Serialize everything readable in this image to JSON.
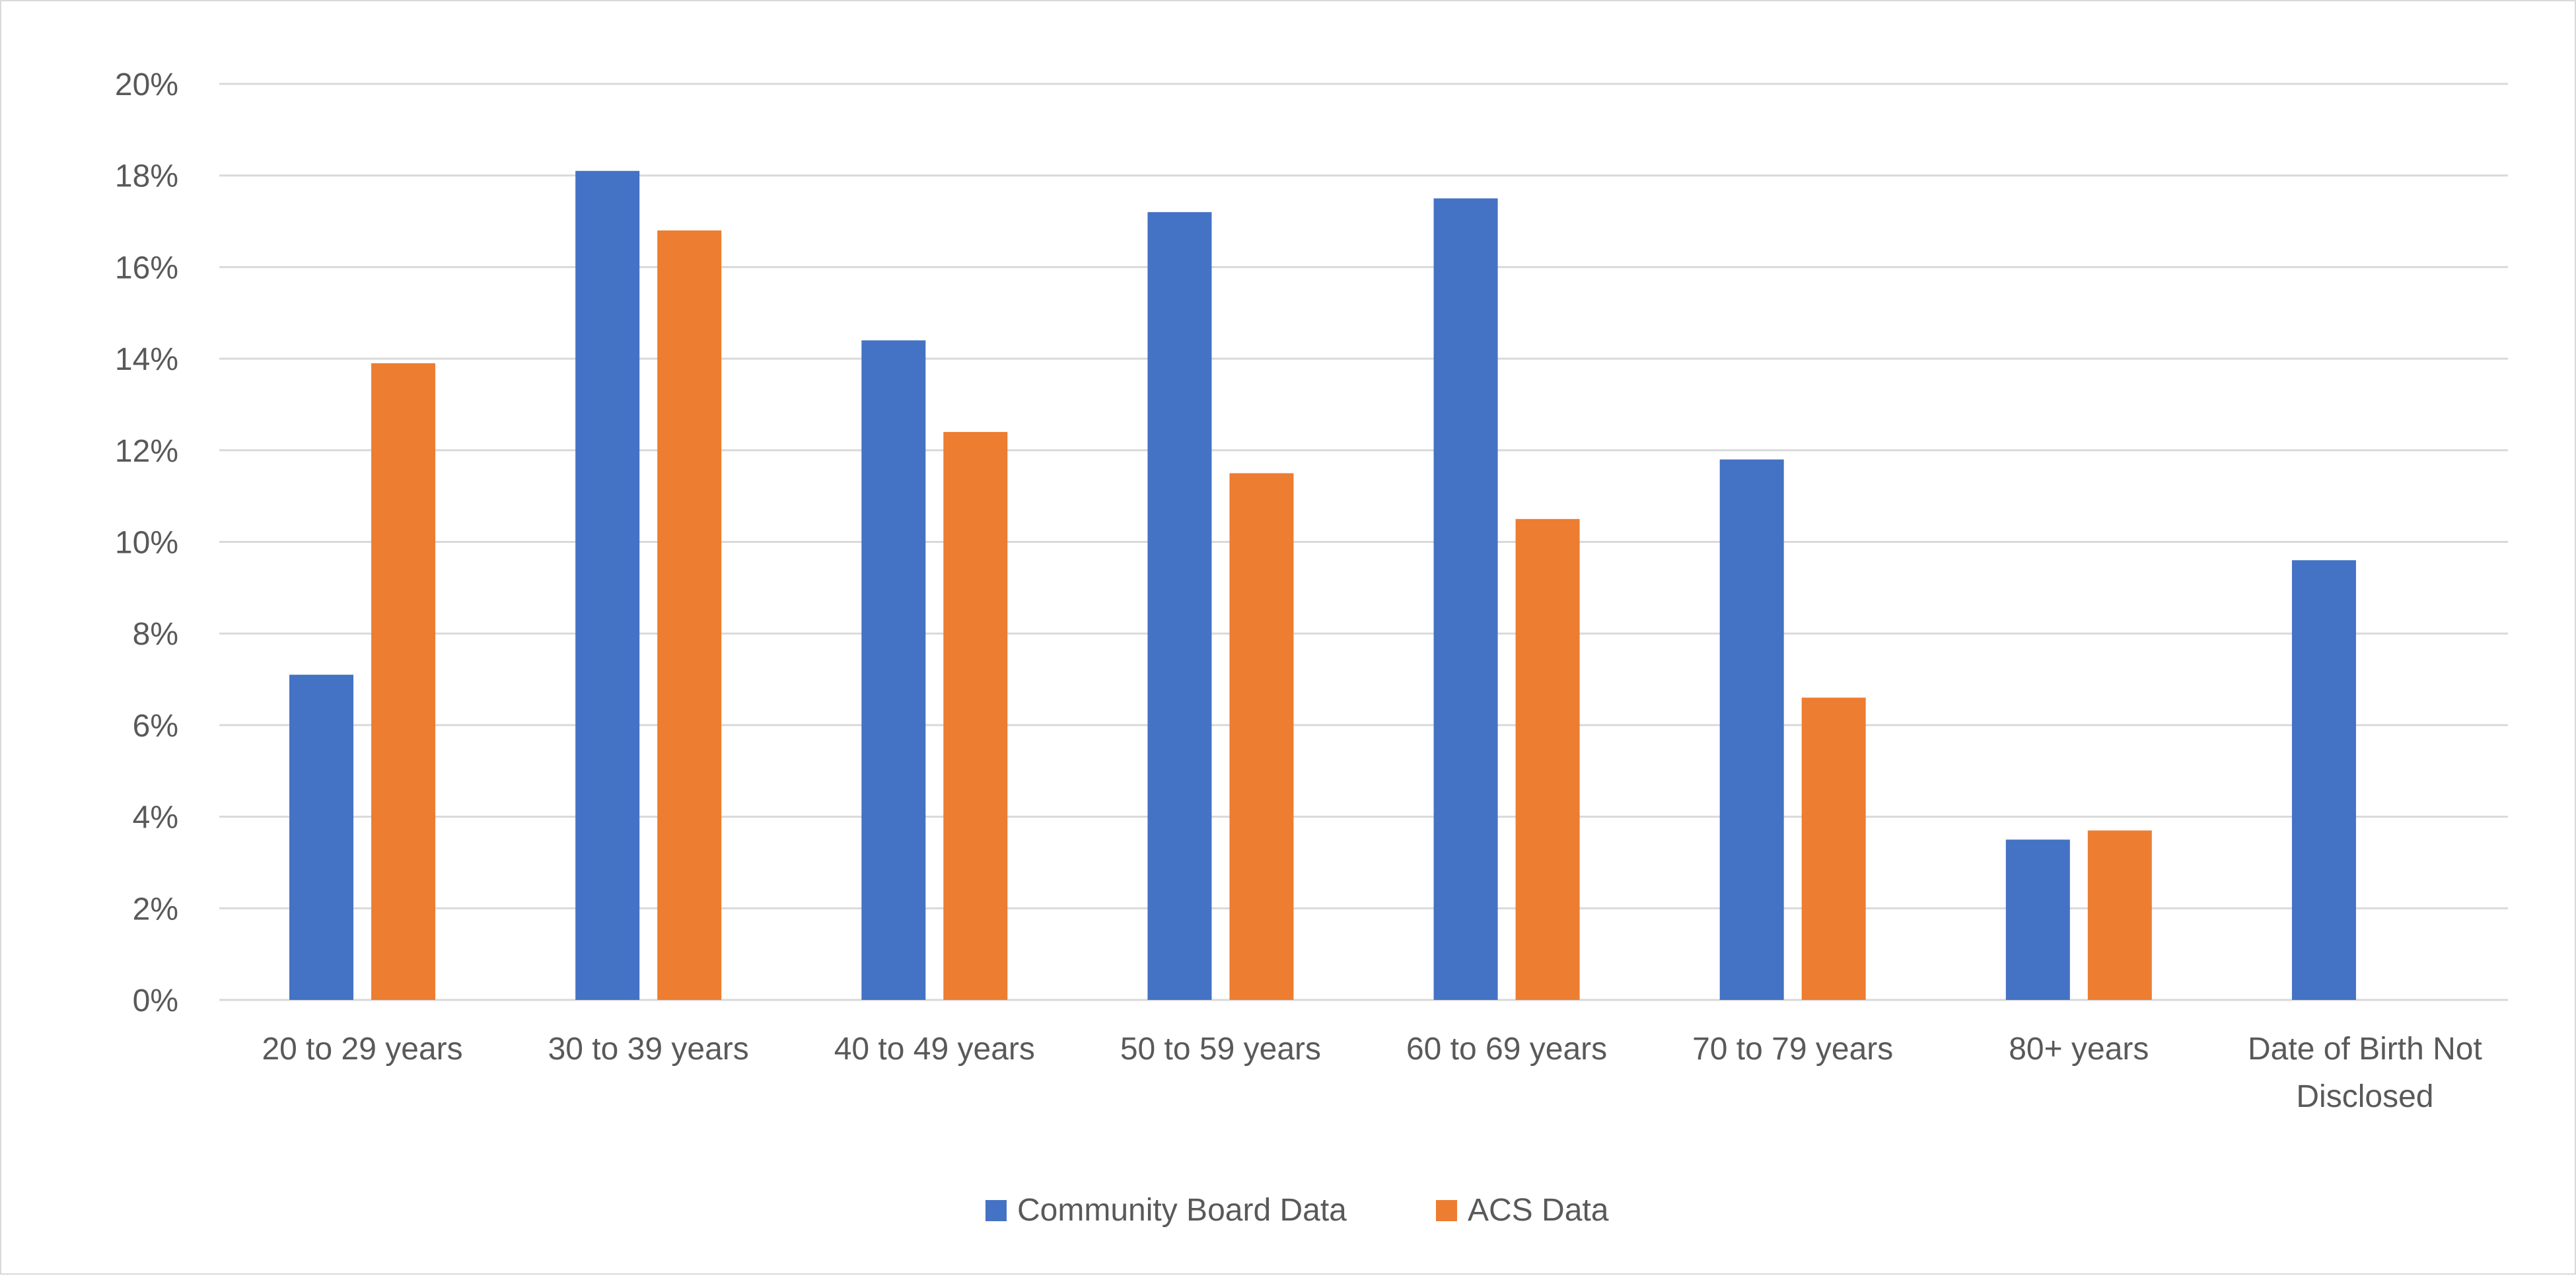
{
  "chart_data": {
    "type": "bar",
    "title": "",
    "xlabel": "",
    "ylabel": "",
    "categories": [
      [
        "20 to 29 years"
      ],
      [
        "30 to 39 years"
      ],
      [
        "40 to 49 years"
      ],
      [
        "50 to 59 years"
      ],
      [
        "60 to 69 years"
      ],
      [
        "70 to 79 years"
      ],
      [
        "80+ years"
      ],
      [
        "Date of Birth Not",
        "Disclosed"
      ]
    ],
    "series": [
      {
        "name": "Community Board Data",
        "color": "#4472c4",
        "values": [
          7.1,
          18.1,
          14.4,
          17.2,
          17.5,
          11.8,
          3.5,
          9.6
        ]
      },
      {
        "name": "ACS Data",
        "color": "#ed7d31",
        "values": [
          13.9,
          16.8,
          12.4,
          11.5,
          10.5,
          6.6,
          3.7,
          null
        ]
      }
    ],
    "ylim": [
      0,
      20
    ],
    "y_ticks": [
      0,
      2,
      4,
      6,
      8,
      10,
      12,
      14,
      16,
      18,
      20
    ],
    "y_tick_format": "percent",
    "grid": true,
    "gridline_color": "#d9d9d9",
    "legend_position": "bottom"
  }
}
